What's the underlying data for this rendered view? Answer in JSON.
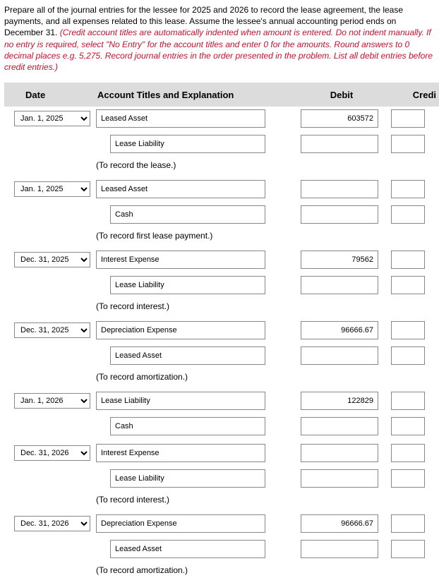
{
  "instructions": {
    "black": "Prepare all of the journal entries for the lessee for 2025 and 2026 to record the lease agreement, the lease payments, and all expenses related to this lease. Assume the lessee's annual accounting period ends on December 31. ",
    "red": "(Credit account titles are automatically indented when amount is entered. Do not indent manually. If no entry is required, select \"No Entry\" for the account titles and enter 0 for the amounts. Round answers to 0 decimal places e.g. 5,275. Record journal entries in the order presented in the problem. List all debit entries before credit entries.)"
  },
  "headers": {
    "date": "Date",
    "acct": "Account Titles and Explanation",
    "debit": "Debit",
    "credit": "Credi"
  },
  "dates": [
    "Jan. 1, 2025",
    "Jan. 1, 2025",
    "Dec. 31, 2025",
    "Dec. 31, 2025",
    "Jan. 1, 2026",
    "Dec. 31, 2026",
    "Dec. 31, 2026"
  ],
  "entries": [
    {
      "date": "Jan. 1, 2025",
      "line1": "Leased Asset",
      "line2": "Lease Liability",
      "debit": "603572",
      "desc": "(To record the lease.)"
    },
    {
      "date": "Jan. 1, 2025",
      "line1": "Leased Asset",
      "line2": "Cash",
      "debit": "",
      "desc": "(To record first lease payment.)"
    },
    {
      "date": "Dec. 31, 2025",
      "line1": "Interest Expense",
      "line2": "Lease Liability",
      "debit": "79562",
      "desc": "(To record interest.)"
    },
    {
      "date": "Dec. 31, 2025",
      "line1": "Depreciation Expense",
      "line2": "Leased Asset",
      "debit": "96666.67",
      "desc": "(To record amortization.)"
    },
    {
      "date": "Jan. 1, 2026",
      "line1": "Lease Liability",
      "line2": "Cash",
      "debit": "122829",
      "desc": ""
    },
    {
      "date": "Dec. 31, 2026",
      "line1": "Interest Expense",
      "line2": "Lease Liability",
      "debit": "",
      "desc": "(To record interest.)"
    },
    {
      "date": "Dec. 31, 2026",
      "line1": "Depreciation Expense",
      "line2": "Leased Asset",
      "debit": "96666.67",
      "desc": "(To record amortization.)"
    }
  ]
}
